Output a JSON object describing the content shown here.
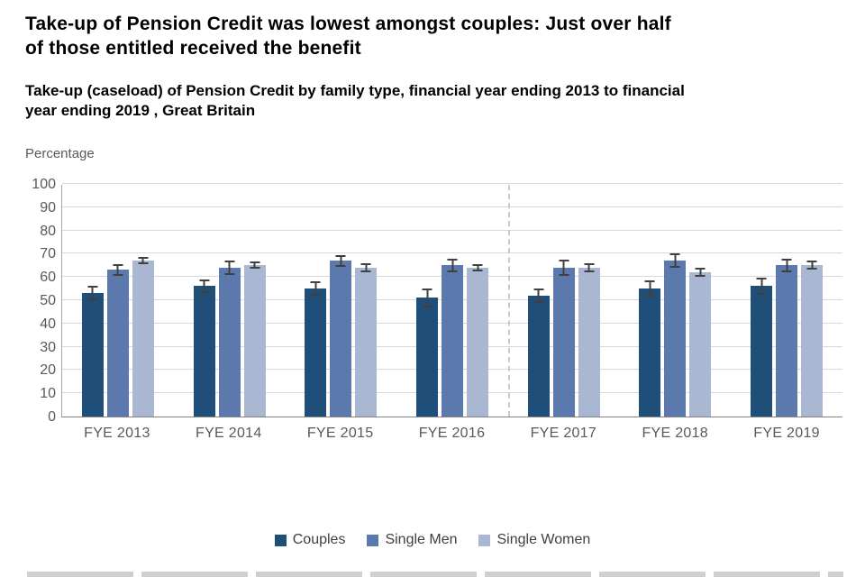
{
  "title": "Take-up of Pension Credit was lowest amongst couples: Just over half of those entitled received the benefit",
  "subtitle": "Take-up (caseload) of Pension Credit by family type, financial year ending 2013 to financial year ending 2019 , Great Britain",
  "axis_unit_label": "Percentage",
  "chart_data": {
    "type": "bar",
    "title": "Take-up (caseload) of Pension Credit by family type, FYE 2013 to FYE 2019, Great Britain",
    "ylabel": "Percentage",
    "ylim": [
      0,
      100
    ],
    "ytick_step": 10,
    "grid": true,
    "legend_position": "bottom",
    "error_bars": true,
    "divider_after_category_index": 3,
    "categories": [
      "FYE 2013",
      "FYE 2014",
      "FYE 2015",
      "FYE 2016",
      "FYE 2017",
      "FYE 2018",
      "FYE 2019"
    ],
    "series": [
      {
        "name": "Couples",
        "color": "#1f4e79",
        "values": [
          53,
          56,
          55,
          51,
          52,
          55,
          56
        ],
        "errors": [
          3,
          3,
          3,
          4,
          3,
          3.5,
          3.5
        ]
      },
      {
        "name": "Single Men",
        "color": "#5b79ad",
        "values": [
          63,
          64,
          67,
          65,
          64,
          67,
          65
        ],
        "errors": [
          2.5,
          3,
          2.5,
          3,
          3.5,
          3,
          3
        ]
      },
      {
        "name": "Single Women",
        "color": "#a9b7d3",
        "values": [
          67,
          65,
          64,
          64,
          64,
          62,
          65
        ],
        "errors": [
          1.5,
          1.5,
          2,
          1.5,
          2,
          2,
          2
        ]
      }
    ]
  }
}
